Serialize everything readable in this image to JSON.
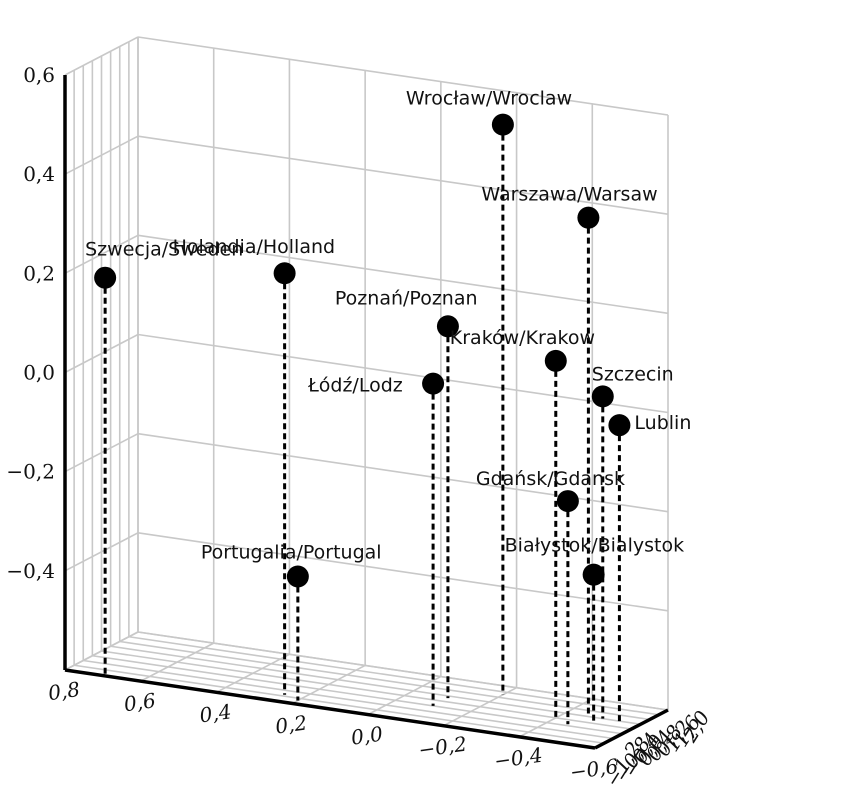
{
  "chart_data": {
    "type": "scatter",
    "projection": "3d",
    "title": "",
    "xlabel": "",
    "ylabel": "",
    "zlabel": "",
    "x_ticks": [
      "0,8",
      "0,6",
      "0,4",
      "0,2",
      "0,0",
      "−0,2",
      "−0,4",
      "−0,6"
    ],
    "y_ticks": [
      "−1,2",
      "−0,8",
      "−0,4",
      "0,0",
      "0,4",
      "0,8",
      "1,2",
      "1,6",
      "2,0"
    ],
    "z_ticks": [
      "−0,4",
      "−0,2",
      "0,0",
      "0,2",
      "0,4",
      "0,6"
    ],
    "xlim": [
      0.8,
      -0.6
    ],
    "ylim": [
      -1.2,
      2.0
    ],
    "zlim": [
      -0.6,
      0.6
    ],
    "grid": true,
    "points": [
      {
        "label": "Szwecja/Sweden",
        "x": 0.7,
        "y": -1.1,
        "z": 0.2
      },
      {
        "label": "Holandia/Holland",
        "x": 0.25,
        "y": -0.7,
        "z": 0.25
      },
      {
        "label": "Portugalia/Portugal",
        "x": 0.2,
        "y": -0.95,
        "z": -0.35
      },
      {
        "label": "Poznań/Poznan",
        "x": -0.1,
        "y": 0.65,
        "z": 0.15
      },
      {
        "label": "Łódź/Lodz",
        "x": -0.1,
        "y": 0.0,
        "z": 0.05
      },
      {
        "label": "Wrocław/Wroclaw",
        "x": -0.2,
        "y": 1.4,
        "z": 0.55
      },
      {
        "label": "Warszawa/Warsaw",
        "x": -0.45,
        "y": 1.0,
        "z": 0.4
      },
      {
        "label": "Kraków/Krakow",
        "x": -0.4,
        "y": 0.4,
        "z": 0.12
      },
      {
        "label": "Szczecin",
        "x": -0.5,
        "y": 0.8,
        "z": 0.05
      },
      {
        "label": "Lublin",
        "x": -0.55,
        "y": 0.7,
        "z": 0.0
      },
      {
        "label": "Gdańsk/Gdansk",
        "x": -0.45,
        "y": 0.1,
        "z": -0.15
      },
      {
        "label": "Białystok/Bialystok",
        "x": -0.5,
        "y": 0.4,
        "z": -0.3
      }
    ]
  }
}
